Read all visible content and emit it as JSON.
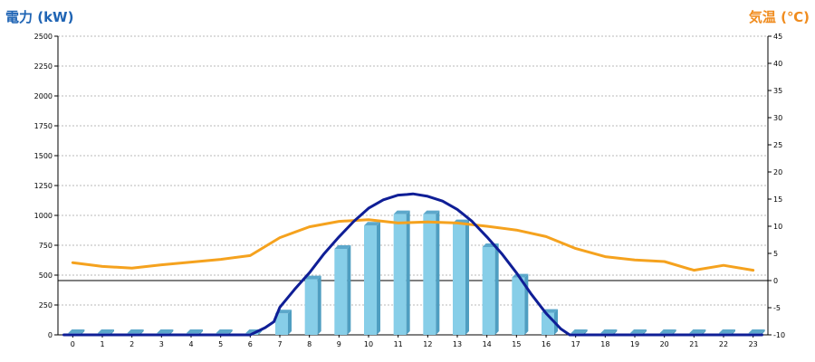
{
  "chart_data": {
    "type": "bar",
    "ylabel": "電力 (kW)",
    "y2label": "気温 (℃)",
    "categories": [
      "0",
      "1",
      "2",
      "3",
      "4",
      "5",
      "6",
      "7",
      "8",
      "9",
      "10",
      "11",
      "12",
      "13",
      "14",
      "15",
      "16",
      "17",
      "18",
      "19",
      "20",
      "21",
      "22",
      "23"
    ],
    "ylim": [
      0,
      2500
    ],
    "y_ticks": [
      "0",
      "250",
      "500",
      "750",
      "1000",
      "1250",
      "1500",
      "1750",
      "2000",
      "2250",
      "2500"
    ],
    "y2lim": [
      -10,
      45
    ],
    "y2_ticks": [
      "-10",
      "-5",
      "0",
      "5",
      "10",
      "15",
      "20",
      "25",
      "30",
      "35",
      "40",
      "45"
    ],
    "reference_line": 455,
    "grid": true,
    "series": [
      {
        "kind": "bar",
        "axis": "left",
        "color": "#87cee8",
        "values": [
          0,
          0,
          0,
          0,
          0,
          0,
          0,
          180,
          465,
          720,
          915,
          1010,
          1010,
          935,
          735,
          480,
          185,
          0,
          0,
          0,
          0,
          0,
          0,
          0
        ]
      },
      {
        "kind": "line",
        "axis": "left",
        "color": "#0f1e96",
        "x": [
          -0.3,
          0,
          1,
          2,
          3,
          4,
          5,
          6,
          6.5,
          6.8,
          7,
          7.5,
          8,
          8.5,
          9,
          9.5,
          10,
          10.5,
          11,
          11.3,
          11.5,
          12,
          12.5,
          13,
          13.5,
          14,
          14.5,
          15,
          15.5,
          16,
          16.5,
          16.8,
          17,
          18,
          19,
          20,
          21,
          22,
          23.3
        ],
        "values": [
          0,
          0,
          0,
          0,
          0,
          0,
          0,
          0,
          60,
          110,
          230,
          380,
          520,
          680,
          820,
          950,
          1060,
          1130,
          1170,
          1175,
          1180,
          1160,
          1120,
          1050,
          950,
          820,
          680,
          520,
          340,
          180,
          50,
          0,
          0,
          0,
          0,
          0,
          0,
          0,
          0
        ]
      },
      {
        "kind": "line",
        "axis": "right",
        "color": "#f5a21e",
        "x": [
          0,
          1,
          2,
          3,
          4,
          5,
          6,
          7,
          8,
          9,
          10,
          11,
          12,
          13,
          14,
          15,
          16,
          17,
          18,
          19,
          20,
          21,
          22,
          23
        ],
        "values": [
          3.3,
          2.6,
          2.3,
          2.9,
          3.4,
          3.9,
          4.6,
          7.9,
          9.9,
          10.9,
          11.2,
          10.6,
          10.8,
          10.6,
          10.0,
          9.3,
          8.1,
          5.9,
          4.4,
          3.8,
          3.5,
          1.9,
          2.8,
          1.9
        ]
      }
    ]
  }
}
